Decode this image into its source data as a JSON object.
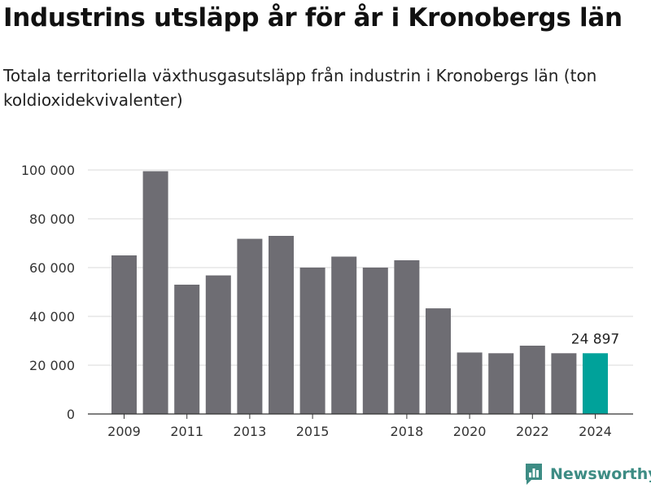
{
  "chart_data": {
    "type": "bar",
    "title": "Industrins utsläpp år för år i Kronobergs län",
    "subtitle": "Totala territoriella växthusgasutsläpp från industrin i Kronobergs län (ton koldioxidekvivalenter)",
    "xlabel": "",
    "ylabel": "",
    "ylim": [
      0,
      100000
    ],
    "y_ticks": [
      0,
      20000,
      40000,
      60000,
      80000,
      100000
    ],
    "y_tick_labels": [
      "0",
      "20 000",
      "40 000",
      "60 000",
      "80 000",
      "100 000"
    ],
    "categories": [
      "2009",
      "2010",
      "2011",
      "2012",
      "2013",
      "2014",
      "2015",
      "2016",
      "2017",
      "2018",
      "2019",
      "2020",
      "2021",
      "2022",
      "2023",
      "2024"
    ],
    "x_tick_labels": [
      "2009",
      "2011",
      "2013",
      "2015",
      "2018",
      "2020",
      "2022",
      "2024"
    ],
    "values": [
      65000,
      99500,
      53000,
      56800,
      71800,
      73000,
      60000,
      64500,
      60000,
      63000,
      43300,
      25200,
      24900,
      28000,
      24900,
      24897
    ],
    "highlight_category": "2024",
    "highlight_label": "24 897",
    "colors": {
      "bar": "#6e6d73",
      "highlight": "#00a29a",
      "grid": "#d8d8d8",
      "axis": "#333333"
    },
    "grid": true,
    "legend": "none"
  },
  "brand": {
    "name": "Newsworthy",
    "icon": "bar-chart-logo-icon",
    "color": "#3d8c84"
  }
}
